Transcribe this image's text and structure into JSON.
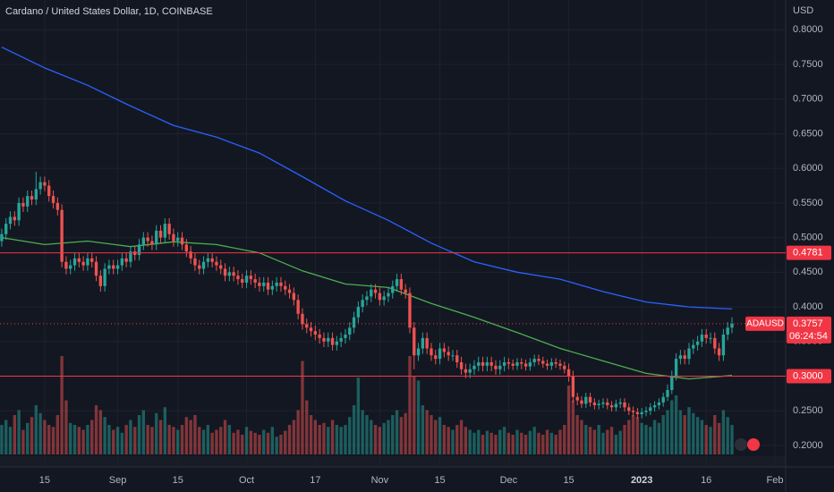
{
  "chart_data": {
    "type": "candlestick",
    "title": "Cardano / United States Dollar, 1D, COINBASE",
    "y_unit": "USD",
    "ylim": [
      0.187,
      0.843
    ],
    "xlim": [
      -0.4,
      182.5
    ],
    "yticks": [
      {
        "value": 0.2,
        "label": "0.2000"
      },
      {
        "value": 0.25,
        "label": "0.2500"
      },
      {
        "value": 0.3,
        "label": "0.3000"
      },
      {
        "value": 0.35,
        "label": "0.3500"
      },
      {
        "value": 0.4,
        "label": "0.4000"
      },
      {
        "value": 0.45,
        "label": "0.4500"
      },
      {
        "value": 0.5,
        "label": "0.5000"
      },
      {
        "value": 0.55,
        "label": "0.5500"
      },
      {
        "value": 0.6,
        "label": "0.6000"
      },
      {
        "value": 0.65,
        "label": "0.6500"
      },
      {
        "value": 0.7,
        "label": "0.7000"
      },
      {
        "value": 0.75,
        "label": "0.7500"
      },
      {
        "value": 0.8,
        "label": "0.8000"
      }
    ],
    "xticks": [
      {
        "value": 10,
        "label": "15"
      },
      {
        "value": 27,
        "label": "Sep"
      },
      {
        "value": 41,
        "label": "15"
      },
      {
        "value": 57,
        "label": "Oct"
      },
      {
        "value": 73,
        "label": "17"
      },
      {
        "value": 88,
        "label": "Nov"
      },
      {
        "value": 102,
        "label": "15"
      },
      {
        "value": 118,
        "label": "Dec"
      },
      {
        "value": 132,
        "label": "15"
      },
      {
        "value": 149,
        "label": "2023"
      },
      {
        "value": 164,
        "label": "16"
      },
      {
        "value": 180,
        "label": "Feb"
      }
    ],
    "up_color": "#26a69a",
    "down_color": "#ef5350",
    "grid": true,
    "ohlc": [
      [
        0.495,
        0.513,
        0.487,
        0.505
      ],
      [
        0.505,
        0.528,
        0.497,
        0.52
      ],
      [
        0.52,
        0.538,
        0.512,
        0.53
      ],
      [
        0.53,
        0.538,
        0.517,
        0.525
      ],
      [
        0.525,
        0.558,
        0.517,
        0.55
      ],
      [
        0.55,
        0.558,
        0.537,
        0.545
      ],
      [
        0.545,
        0.568,
        0.537,
        0.56
      ],
      [
        0.56,
        0.568,
        0.547,
        0.555
      ],
      [
        0.555,
        0.595,
        0.547,
        0.57
      ],
      [
        0.57,
        0.588,
        0.562,
        0.58
      ],
      [
        0.58,
        0.588,
        0.567,
        0.575
      ],
      [
        0.575,
        0.583,
        0.552,
        0.56
      ],
      [
        0.56,
        0.568,
        0.542,
        0.55
      ],
      [
        0.55,
        0.558,
        0.532,
        0.54
      ],
      [
        0.54,
        0.548,
        0.457,
        0.465
      ],
      [
        0.465,
        0.473,
        0.447,
        0.455
      ],
      [
        0.455,
        0.468,
        0.447,
        0.46
      ],
      [
        0.46,
        0.478,
        0.452,
        0.47
      ],
      [
        0.47,
        0.478,
        0.457,
        0.465
      ],
      [
        0.465,
        0.473,
        0.452,
        0.46
      ],
      [
        0.46,
        0.478,
        0.452,
        0.47
      ],
      [
        0.47,
        0.478,
        0.457,
        0.465
      ],
      [
        0.465,
        0.473,
        0.437,
        0.445
      ],
      [
        0.445,
        0.453,
        0.422,
        0.43
      ],
      [
        0.43,
        0.463,
        0.422,
        0.455
      ],
      [
        0.455,
        0.468,
        0.447,
        0.46
      ],
      [
        0.46,
        0.468,
        0.447,
        0.455
      ],
      [
        0.455,
        0.468,
        0.447,
        0.46
      ],
      [
        0.46,
        0.478,
        0.452,
        0.47
      ],
      [
        0.47,
        0.478,
        0.457,
        0.465
      ],
      [
        0.465,
        0.488,
        0.457,
        0.48
      ],
      [
        0.48,
        0.488,
        0.467,
        0.475
      ],
      [
        0.475,
        0.498,
        0.467,
        0.49
      ],
      [
        0.49,
        0.508,
        0.482,
        0.5
      ],
      [
        0.5,
        0.508,
        0.487,
        0.495
      ],
      [
        0.495,
        0.503,
        0.482,
        0.49
      ],
      [
        0.49,
        0.518,
        0.482,
        0.51
      ],
      [
        0.51,
        0.518,
        0.492,
        0.5
      ],
      [
        0.5,
        0.528,
        0.492,
        0.52
      ],
      [
        0.52,
        0.528,
        0.497,
        0.505
      ],
      [
        0.505,
        0.513,
        0.487,
        0.495
      ],
      [
        0.495,
        0.508,
        0.487,
        0.5
      ],
      [
        0.5,
        0.508,
        0.482,
        0.49
      ],
      [
        0.49,
        0.498,
        0.472,
        0.48
      ],
      [
        0.48,
        0.488,
        0.462,
        0.47
      ],
      [
        0.47,
        0.478,
        0.452,
        0.46
      ],
      [
        0.46,
        0.468,
        0.447,
        0.455
      ],
      [
        0.455,
        0.473,
        0.447,
        0.465
      ],
      [
        0.465,
        0.478,
        0.457,
        0.47
      ],
      [
        0.47,
        0.478,
        0.457,
        0.465
      ],
      [
        0.465,
        0.473,
        0.452,
        0.46
      ],
      [
        0.46,
        0.468,
        0.447,
        0.455
      ],
      [
        0.455,
        0.463,
        0.437,
        0.445
      ],
      [
        0.445,
        0.458,
        0.437,
        0.45
      ],
      [
        0.45,
        0.458,
        0.437,
        0.445
      ],
      [
        0.445,
        0.453,
        0.432,
        0.44
      ],
      [
        0.44,
        0.448,
        0.427,
        0.435
      ],
      [
        0.435,
        0.453,
        0.427,
        0.445
      ],
      [
        0.445,
        0.453,
        0.432,
        0.44
      ],
      [
        0.44,
        0.448,
        0.427,
        0.435
      ],
      [
        0.435,
        0.443,
        0.422,
        0.43
      ],
      [
        0.43,
        0.443,
        0.422,
        0.435
      ],
      [
        0.435,
        0.443,
        0.417,
        0.425
      ],
      [
        0.425,
        0.438,
        0.417,
        0.43
      ],
      [
        0.43,
        0.443,
        0.422,
        0.435
      ],
      [
        0.435,
        0.443,
        0.422,
        0.43
      ],
      [
        0.43,
        0.438,
        0.417,
        0.425
      ],
      [
        0.425,
        0.433,
        0.412,
        0.42
      ],
      [
        0.42,
        0.428,
        0.402,
        0.41
      ],
      [
        0.41,
        0.418,
        0.382,
        0.39
      ],
      [
        0.39,
        0.398,
        0.367,
        0.375
      ],
      [
        0.375,
        0.383,
        0.362,
        0.37
      ],
      [
        0.37,
        0.378,
        0.357,
        0.365
      ],
      [
        0.365,
        0.373,
        0.352,
        0.36
      ],
      [
        0.36,
        0.368,
        0.347,
        0.355
      ],
      [
        0.355,
        0.363,
        0.342,
        0.35
      ],
      [
        0.35,
        0.363,
        0.342,
        0.355
      ],
      [
        0.355,
        0.363,
        0.337,
        0.345
      ],
      [
        0.345,
        0.358,
        0.337,
        0.35
      ],
      [
        0.35,
        0.363,
        0.342,
        0.355
      ],
      [
        0.355,
        0.368,
        0.347,
        0.36
      ],
      [
        0.36,
        0.378,
        0.352,
        0.37
      ],
      [
        0.37,
        0.393,
        0.362,
        0.385
      ],
      [
        0.385,
        0.408,
        0.377,
        0.4
      ],
      [
        0.4,
        0.418,
        0.392,
        0.41
      ],
      [
        0.41,
        0.423,
        0.402,
        0.415
      ],
      [
        0.415,
        0.433,
        0.407,
        0.425
      ],
      [
        0.425,
        0.433,
        0.412,
        0.42
      ],
      [
        0.42,
        0.428,
        0.402,
        0.41
      ],
      [
        0.41,
        0.423,
        0.402,
        0.415
      ],
      [
        0.415,
        0.428,
        0.407,
        0.42
      ],
      [
        0.42,
        0.438,
        0.412,
        0.43
      ],
      [
        0.43,
        0.448,
        0.422,
        0.44
      ],
      [
        0.44,
        0.448,
        0.417,
        0.425
      ],
      [
        0.425,
        0.433,
        0.412,
        0.42
      ],
      [
        0.42,
        0.428,
        0.362,
        0.37
      ],
      [
        0.37,
        0.378,
        0.31,
        0.33
      ],
      [
        0.33,
        0.348,
        0.322,
        0.34
      ],
      [
        0.34,
        0.363,
        0.332,
        0.355
      ],
      [
        0.355,
        0.363,
        0.332,
        0.34
      ],
      [
        0.34,
        0.348,
        0.322,
        0.33
      ],
      [
        0.33,
        0.338,
        0.317,
        0.325
      ],
      [
        0.325,
        0.348,
        0.317,
        0.34
      ],
      [
        0.34,
        0.348,
        0.327,
        0.335
      ],
      [
        0.335,
        0.343,
        0.322,
        0.33
      ],
      [
        0.33,
        0.338,
        0.322,
        0.33
      ],
      [
        0.33,
        0.338,
        0.312,
        0.32
      ],
      [
        0.32,
        0.328,
        0.302,
        0.31
      ],
      [
        0.31,
        0.318,
        0.297,
        0.305
      ],
      [
        0.305,
        0.318,
        0.297,
        0.31
      ],
      [
        0.31,
        0.323,
        0.302,
        0.315
      ],
      [
        0.315,
        0.328,
        0.307,
        0.32
      ],
      [
        0.32,
        0.328,
        0.307,
        0.315
      ],
      [
        0.315,
        0.328,
        0.307,
        0.32
      ],
      [
        0.32,
        0.328,
        0.307,
        0.315
      ],
      [
        0.315,
        0.323,
        0.302,
        0.31
      ],
      [
        0.31,
        0.323,
        0.302,
        0.315
      ],
      [
        0.315,
        0.328,
        0.307,
        0.32
      ],
      [
        0.32,
        0.326,
        0.31,
        0.318
      ],
      [
        0.318,
        0.324,
        0.309,
        0.315
      ],
      [
        0.315,
        0.326,
        0.309,
        0.32
      ],
      [
        0.32,
        0.326,
        0.31,
        0.318
      ],
      [
        0.318,
        0.324,
        0.308,
        0.314
      ],
      [
        0.314,
        0.326,
        0.308,
        0.32
      ],
      [
        0.32,
        0.331,
        0.314,
        0.325
      ],
      [
        0.325,
        0.331,
        0.316,
        0.322
      ],
      [
        0.322,
        0.328,
        0.312,
        0.318
      ],
      [
        0.318,
        0.324,
        0.309,
        0.315
      ],
      [
        0.315,
        0.326,
        0.309,
        0.32
      ],
      [
        0.32,
        0.326,
        0.312,
        0.318
      ],
      [
        0.318,
        0.324,
        0.309,
        0.315
      ],
      [
        0.315,
        0.321,
        0.304,
        0.31
      ],
      [
        0.31,
        0.318,
        0.292,
        0.3
      ],
      [
        0.3,
        0.308,
        0.262,
        0.27
      ],
      [
        0.27,
        0.276,
        0.258,
        0.265
      ],
      [
        0.265,
        0.271,
        0.254,
        0.26
      ],
      [
        0.26,
        0.276,
        0.254,
        0.27
      ],
      [
        0.27,
        0.276,
        0.256,
        0.262
      ],
      [
        0.262,
        0.268,
        0.252,
        0.258
      ],
      [
        0.258,
        0.266,
        0.252,
        0.26
      ],
      [
        0.26,
        0.268,
        0.254,
        0.262
      ],
      [
        0.262,
        0.268,
        0.252,
        0.258
      ],
      [
        0.258,
        0.264,
        0.249,
        0.255
      ],
      [
        0.255,
        0.266,
        0.249,
        0.26
      ],
      [
        0.26,
        0.268,
        0.254,
        0.262
      ],
      [
        0.262,
        0.268,
        0.249,
        0.255
      ],
      [
        0.255,
        0.261,
        0.244,
        0.25
      ],
      [
        0.25,
        0.256,
        0.242,
        0.248
      ],
      [
        0.248,
        0.254,
        0.239,
        0.245
      ],
      [
        0.245,
        0.254,
        0.239,
        0.248
      ],
      [
        0.248,
        0.256,
        0.242,
        0.25
      ],
      [
        0.25,
        0.261,
        0.244,
        0.255
      ],
      [
        0.255,
        0.264,
        0.249,
        0.258
      ],
      [
        0.258,
        0.268,
        0.252,
        0.262
      ],
      [
        0.262,
        0.276,
        0.256,
        0.27
      ],
      [
        0.27,
        0.288,
        0.264,
        0.28
      ],
      [
        0.28,
        0.308,
        0.274,
        0.3
      ],
      [
        0.3,
        0.333,
        0.294,
        0.325
      ],
      [
        0.325,
        0.338,
        0.317,
        0.33
      ],
      [
        0.33,
        0.338,
        0.317,
        0.325
      ],
      [
        0.325,
        0.348,
        0.317,
        0.34
      ],
      [
        0.34,
        0.353,
        0.332,
        0.345
      ],
      [
        0.345,
        0.358,
        0.337,
        0.35
      ],
      [
        0.35,
        0.368,
        0.342,
        0.36
      ],
      [
        0.36,
        0.368,
        0.347,
        0.355
      ],
      [
        0.355,
        0.363,
        0.347,
        0.355
      ],
      [
        0.355,
        0.363,
        0.332,
        0.34
      ],
      [
        0.34,
        0.348,
        0.322,
        0.33
      ],
      [
        0.33,
        0.368,
        0.322,
        0.36
      ],
      [
        0.36,
        0.378,
        0.352,
        0.37
      ],
      [
        0.37,
        0.385,
        0.362,
        0.3757
      ]
    ],
    "volume": [
      30,
      35,
      28,
      40,
      45,
      25,
      32,
      38,
      50,
      42,
      35,
      30,
      28,
      40,
      100,
      55,
      32,
      30,
      28,
      25,
      30,
      35,
      50,
      45,
      38,
      30,
      25,
      28,
      22,
      30,
      35,
      28,
      40,
      45,
      30,
      28,
      42,
      35,
      48,
      30,
      28,
      25,
      30,
      38,
      35,
      40,
      28,
      25,
      30,
      22,
      25,
      28,
      35,
      30,
      22,
      25,
      20,
      28,
      24,
      22,
      20,
      25,
      22,
      28,
      18,
      20,
      24,
      30,
      35,
      45,
      95,
      55,
      40,
      35,
      30,
      32,
      28,
      35,
      30,
      28,
      30,
      38,
      50,
      78,
      45,
      40,
      35,
      30,
      28,
      32,
      35,
      40,
      45,
      38,
      42,
      100,
      80,
      75,
      50,
      45,
      40,
      35,
      38,
      30,
      28,
      25,
      30,
      35,
      28,
      25,
      22,
      25,
      20,
      24,
      22,
      20,
      25,
      28,
      22,
      20,
      25,
      22,
      20,
      24,
      28,
      22,
      20,
      25,
      22,
      20,
      25,
      30,
      70,
      55,
      40,
      35,
      30,
      28,
      25,
      30,
      22,
      25,
      28,
      20,
      24,
      30,
      35,
      40,
      38,
      32,
      30,
      28,
      35,
      32,
      40,
      45,
      55,
      60,
      45,
      40,
      48,
      42,
      38,
      35,
      30,
      28,
      40,
      32,
      45,
      38,
      30
    ],
    "moving_averages": [
      {
        "color": "#2962ff",
        "x": [
          0,
          10,
          20,
          30,
          40,
          50,
          60,
          70,
          80,
          90,
          100,
          110,
          120,
          130,
          140,
          150,
          160,
          170
        ],
        "values": [
          0.775,
          0.745,
          0.72,
          0.69,
          0.662,
          0.645,
          0.622,
          0.588,
          0.553,
          0.525,
          0.492,
          0.465,
          0.45,
          0.44,
          0.422,
          0.407,
          0.4,
          0.397
        ]
      },
      {
        "color": "#4caf50",
        "x": [
          0,
          10,
          20,
          30,
          40,
          50,
          60,
          70,
          80,
          90,
          100,
          110,
          120,
          130,
          140,
          150,
          160,
          170
        ],
        "values": [
          0.5,
          0.49,
          0.495,
          0.487,
          0.494,
          0.49,
          0.478,
          0.452,
          0.433,
          0.428,
          0.405,
          0.385,
          0.363,
          0.34,
          0.322,
          0.304,
          0.296,
          0.301
        ]
      }
    ],
    "levels": [
      0.4781,
      {
        "value": 0.3,
        "label": "0.3000"
      }
    ],
    "level_color": "#f23645",
    "last_price": {
      "symbol": "ADAUSD",
      "value": 0.3757,
      "countdown": "06:24:54"
    }
  }
}
